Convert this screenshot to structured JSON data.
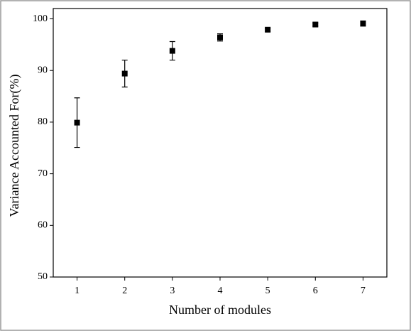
{
  "chart_data": {
    "type": "scatter",
    "xlabel": "Number of modules",
    "ylabel": "Variance Accounted For(%)",
    "x": [
      1,
      2,
      3,
      4,
      5,
      6,
      7
    ],
    "series": [
      {
        "color": "#000000",
        "values": [
          79.9,
          89.4,
          93.8,
          96.4,
          97.9,
          98.9,
          99.1
        ],
        "errors": [
          4.8,
          2.6,
          1.8,
          0.7,
          0.3,
          0.3,
          0.5
        ]
      }
    ],
    "xlim": [
      0.5,
      7.5
    ],
    "xticks": [
      1,
      2,
      3,
      4,
      5,
      6,
      7
    ],
    "ylim": [
      50,
      102
    ],
    "yticks": [
      50,
      60,
      70,
      80,
      90,
      100
    ],
    "grid": false
  }
}
